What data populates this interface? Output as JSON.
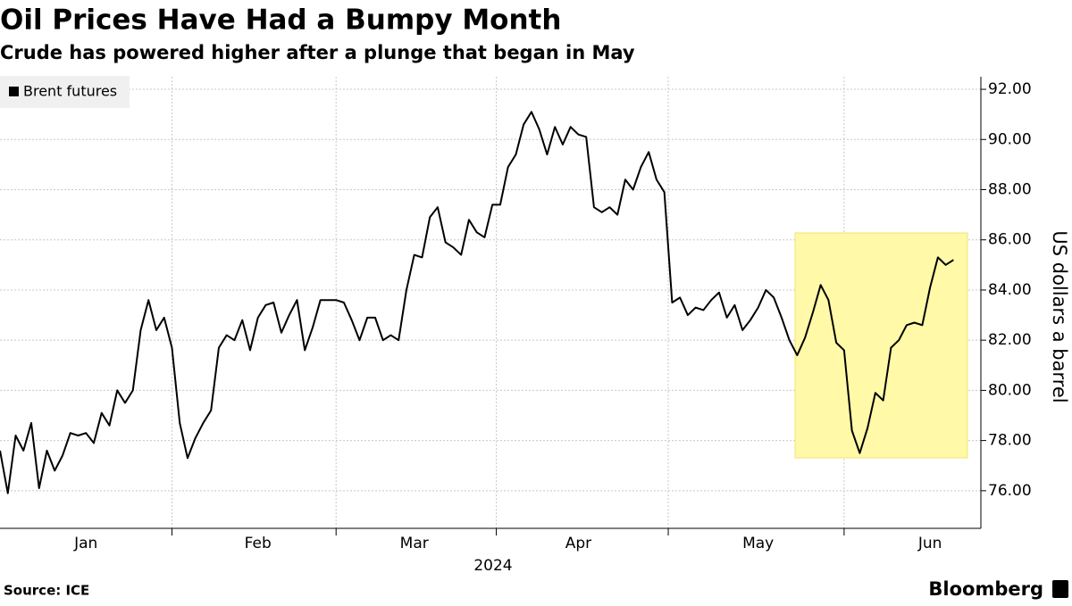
{
  "chart_data": {
    "type": "line",
    "title": "Oil Prices Have Had a Bumpy Month",
    "subtitle": "Crude has powered higher after a plunge that began in May",
    "ylabel": "US dollars a barrel",
    "xlabel": "2024",
    "source": "Source: ICE",
    "brand": "Bloomberg",
    "categories": [
      null,
      null,
      null,
      null,
      null,
      null,
      null,
      null,
      null,
      null,
      null,
      "Jan",
      null,
      null,
      null,
      null,
      null,
      null,
      null,
      null,
      null,
      null,
      null,
      null,
      null,
      null,
      null,
      null,
      null,
      null,
      null,
      null,
      null,
      "Feb",
      null,
      null,
      null,
      null,
      null,
      null,
      null,
      null,
      null,
      null,
      null,
      null,
      null,
      null,
      null,
      null,
      null,
      null,
      null,
      "Mar",
      null,
      null,
      null,
      null,
      null,
      null,
      null,
      null,
      null,
      null,
      null,
      null,
      null,
      null,
      null,
      null,
      null,
      null,
      null,
      null,
      "Apr",
      null,
      null,
      null,
      null,
      null,
      null,
      null,
      null,
      null,
      null,
      null,
      null,
      null,
      null,
      null,
      null,
      null,
      null,
      null,
      null,
      null,
      null,
      "May",
      null,
      null,
      null,
      null,
      null,
      null,
      null,
      null,
      null,
      null,
      null,
      null,
      null,
      null,
      null,
      null,
      null,
      null,
      null,
      null,
      null,
      "Jun",
      null,
      null,
      null
    ],
    "series": [
      {
        "name": "Brent futures",
        "color": "#000000",
        "values": [
          77.6,
          75.9,
          78.2,
          77.6,
          78.7,
          76.1,
          77.6,
          76.8,
          77.4,
          78.3,
          78.2,
          78.3,
          77.9,
          79.1,
          78.6,
          80.0,
          79.5,
          80.0,
          82.4,
          83.6,
          82.4,
          82.9,
          81.7,
          78.7,
          77.3,
          78.1,
          78.7,
          79.2,
          81.7,
          82.2,
          82.0,
          82.8,
          81.6,
          82.9,
          83.4,
          83.5,
          82.3,
          83.0,
          83.6,
          81.6,
          82.5,
          83.6,
          83.6,
          83.6,
          83.5,
          82.8,
          82.0,
          82.9,
          82.9,
          82.0,
          82.2,
          82.0,
          84.0,
          85.4,
          85.3,
          86.9,
          87.3,
          85.9,
          85.7,
          85.4,
          86.8,
          86.3,
          86.1,
          87.4,
          87.4,
          88.9,
          89.4,
          90.6,
          91.1,
          90.4,
          89.4,
          90.5,
          89.8,
          90.5,
          90.2,
          90.1,
          87.3,
          87.1,
          87.3,
          87.0,
          88.4,
          88.0,
          88.9,
          89.5,
          88.4,
          87.9,
          83.5,
          83.7,
          83.0,
          83.3,
          83.2,
          83.6,
          83.9,
          82.9,
          83.4,
          82.4,
          82.8,
          83.3,
          84.0,
          83.7,
          82.9,
          82.0,
          81.4,
          82.1,
          83.1,
          84.2,
          83.6,
          81.9,
          81.6,
          78.4,
          77.5,
          78.5,
          79.9,
          79.6,
          81.7,
          82.0,
          82.6,
          82.7,
          82.6,
          84.1,
          85.3,
          85.0,
          85.2
        ]
      }
    ],
    "ylim": [
      74.5,
      92.5
    ],
    "yticks": [
      {
        "value": 76,
        "label": "76.00"
      },
      {
        "value": 78,
        "label": "78.00"
      },
      {
        "value": 80,
        "label": "80.00"
      },
      {
        "value": 82,
        "label": "82.00"
      },
      {
        "value": 84,
        "label": "84.00"
      },
      {
        "value": 86,
        "label": "86.00"
      },
      {
        "value": 88,
        "label": "88.00"
      },
      {
        "value": 90,
        "label": "90.00"
      },
      {
        "value": 92,
        "label": "92.00"
      }
    ],
    "grid": true,
    "legend": "top-left"
  }
}
